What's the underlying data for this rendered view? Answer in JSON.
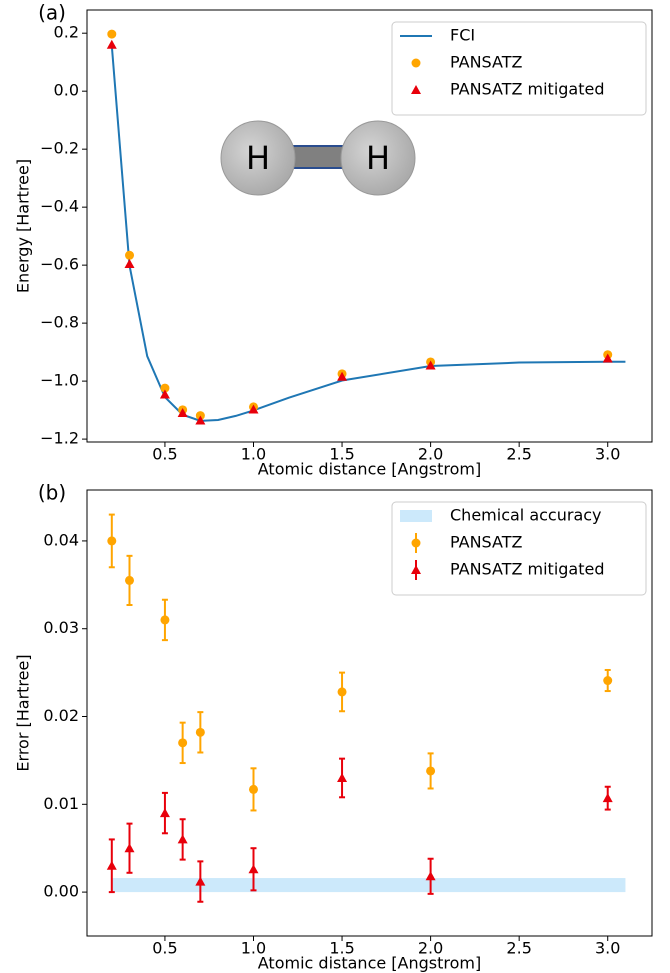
{
  "chart_data": [
    {
      "type": "line",
      "panel_label": "(a)",
      "xlabel": "Atomic distance [Angstrom]",
      "ylabel": "Energy [Hartree]",
      "xlim": [
        0.06,
        3.25
      ],
      "ylim": [
        -1.21,
        0.28
      ],
      "xticks": [
        0.5,
        {
          "value": 1,
          "label": "1.0"
        },
        1.5,
        {
          "value": 2,
          "label": "2.0"
        },
        2.5,
        {
          "value": 3,
          "label": "3.0"
        }
      ],
      "yticks": [
        {
          "value": -1.2,
          "label": "−1.2"
        },
        {
          "value": -1,
          "label": "−1.0"
        },
        {
          "value": -0.8,
          "label": "−0.8"
        },
        {
          "value": -0.6,
          "label": "−0.6"
        },
        {
          "value": -0.4,
          "label": "−0.4"
        },
        {
          "value": -0.2,
          "label": "−0.2"
        },
        {
          "value": 0,
          "label": "0.0"
        },
        0.2
      ],
      "legend": "upper right",
      "annotations": [
        "H",
        "H"
      ],
      "series": [
        {
          "name": "FCI",
          "color": "#1f77b4",
          "marker": "line",
          "x": [
            0.2,
            0.3,
            0.4,
            0.5,
            0.6,
            0.7,
            0.8,
            0.9,
            1.0,
            1.2,
            1.5,
            2.0,
            2.5,
            3.0,
            3.1
          ],
          "values": [
            0.157,
            -0.601,
            -0.914,
            -1.055,
            -1.116,
            -1.137,
            -1.134,
            -1.12,
            -1.101,
            -1.057,
            -0.998,
            -0.948,
            -0.936,
            -0.933,
            -0.933
          ]
        },
        {
          "name": "PANSATZ",
          "color": "#ffa500",
          "marker": "circle",
          "x": [
            0.2,
            0.3,
            0.5,
            0.6,
            0.7,
            1.0,
            1.5,
            2.0,
            3.0
          ],
          "values": [
            0.197,
            -0.566,
            -1.024,
            -1.099,
            -1.119,
            -1.089,
            -0.975,
            -0.934,
            -0.909
          ]
        },
        {
          "name": "PANSATZ mitigated",
          "color": "#e8000b",
          "marker": "triangle",
          "x": [
            0.2,
            0.3,
            0.5,
            0.6,
            0.7,
            1.0,
            1.5,
            2.0,
            3.0
          ],
          "values": [
            0.16,
            -0.596,
            -1.046,
            -1.11,
            -1.136,
            -1.098,
            -0.985,
            -0.946,
            -0.922
          ]
        }
      ]
    },
    {
      "type": "errorbar",
      "panel_label": "(b)",
      "xlabel": "Atomic distance [Angstrom]",
      "ylabel": "Error [Hartree]",
      "xlim": [
        0.06,
        3.25
      ],
      "ylim": [
        -0.005,
        0.0458
      ],
      "xticks": [
        0.5,
        {
          "value": 1,
          "label": "1.0"
        },
        1.5,
        {
          "value": 2,
          "label": "2.0"
        },
        2.5,
        {
          "value": 3,
          "label": "3.0"
        }
      ],
      "yticks": [
        {
          "value": 0,
          "label": "0.00"
        },
        {
          "value": 0.01,
          "label": "0.01"
        },
        {
          "value": 0.02,
          "label": "0.02"
        },
        {
          "value": 0.03,
          "label": "0.03"
        },
        {
          "value": 0.04,
          "label": "0.04"
        }
      ],
      "legend": "upper right",
      "series": [
        {
          "name": "Chemical accuracy",
          "color": "#cce9fb",
          "marker": "band",
          "x": [
            0.2,
            3.1
          ],
          "lower": [
            0,
            0
          ],
          "values": [
            0.0016,
            0.0016
          ]
        },
        {
          "name": "PANSATZ",
          "color": "#ffa500",
          "marker": "circle",
          "x": [
            0.2,
            0.3,
            0.5,
            0.6,
            0.7,
            1.0,
            1.5,
            2.0,
            3.0
          ],
          "values": [
            0.04,
            0.0355,
            0.031,
            0.017,
            0.0182,
            0.0117,
            0.0228,
            0.0138,
            0.0241
          ],
          "errors": [
            0.003,
            0.0028,
            0.0023,
            0.0023,
            0.0023,
            0.0024,
            0.0022,
            0.002,
            0.0012
          ]
        },
        {
          "name": "PANSATZ mitigated",
          "color": "#e8000b",
          "marker": "triangle",
          "x": [
            0.2,
            0.3,
            0.5,
            0.6,
            0.7,
            1.0,
            1.5,
            2.0,
            3.0
          ],
          "values": [
            0.003,
            0.005,
            0.009,
            0.006,
            0.0012,
            0.0026,
            0.013,
            0.0018,
            0.0107
          ],
          "errors": [
            0.003,
            0.0028,
            0.0023,
            0.0023,
            0.0023,
            0.0024,
            0.0022,
            0.002,
            0.0013
          ]
        }
      ]
    }
  ]
}
